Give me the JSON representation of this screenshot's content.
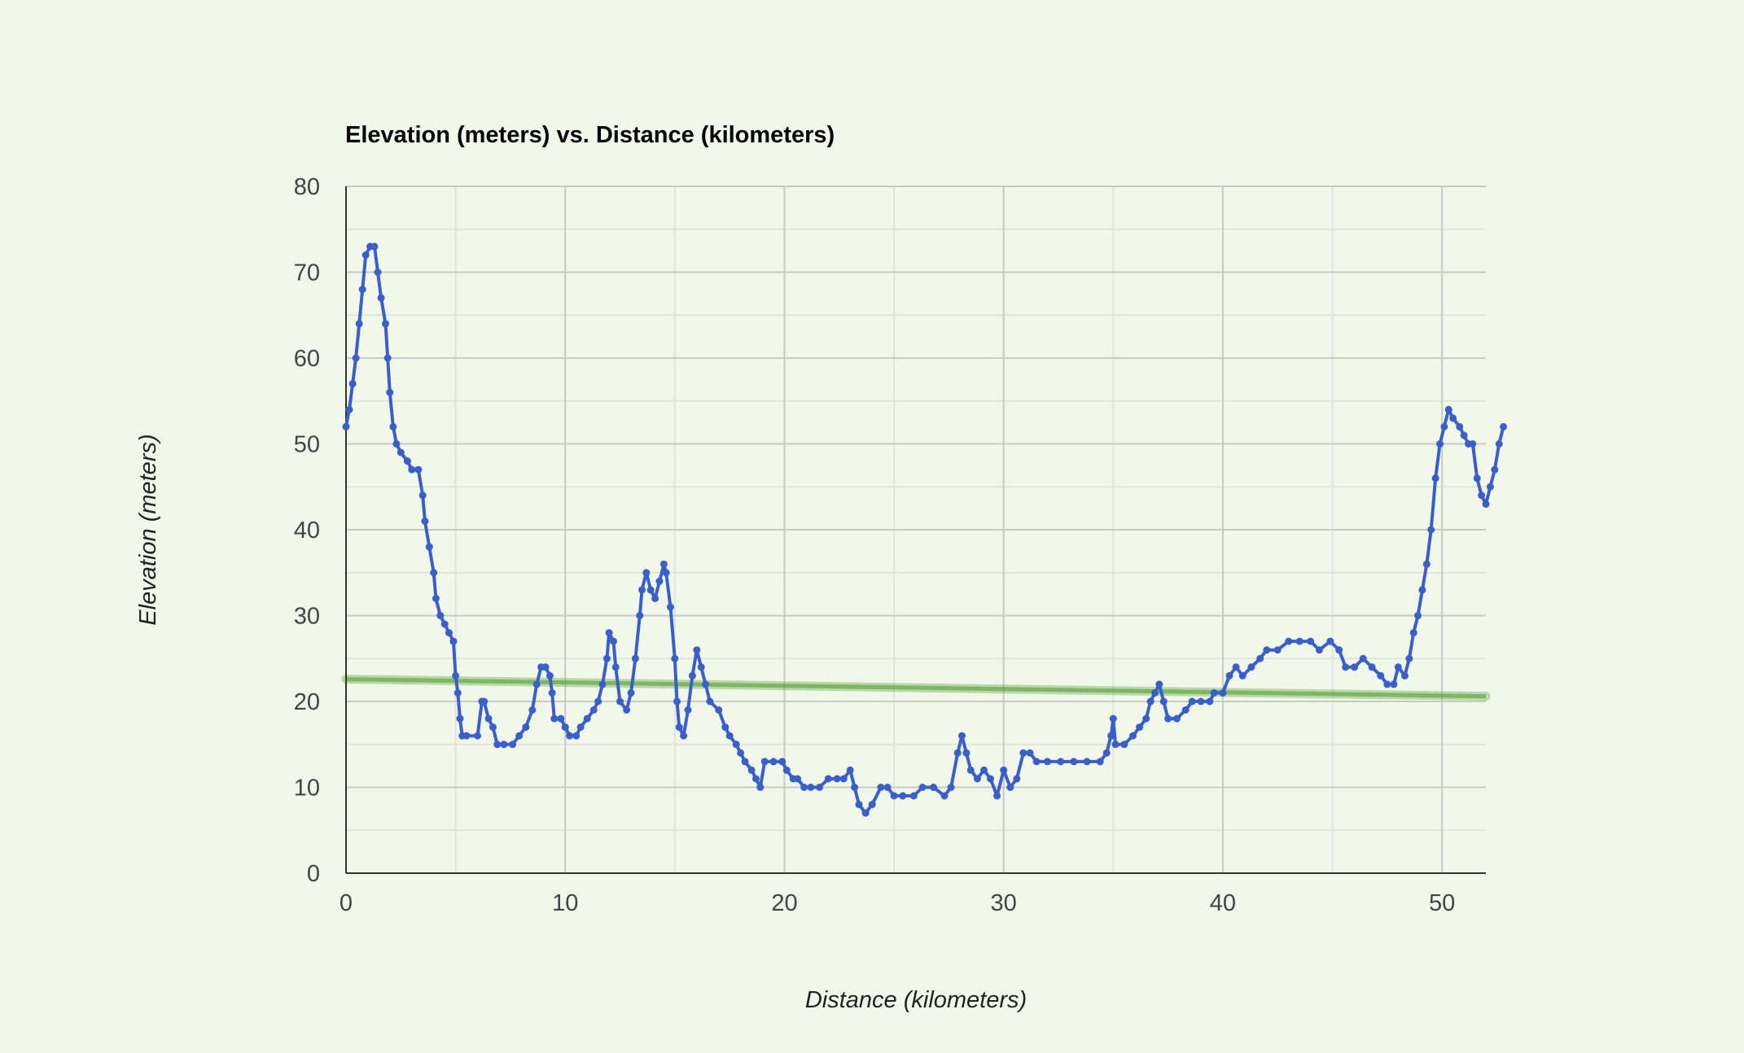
{
  "chart_data": {
    "type": "scatter",
    "title": "Elevation (meters) vs. Distance (kilometers)",
    "xlabel": "Distance (kilometers)",
    "ylabel": "Elevation (meters)",
    "xlim": [
      0,
      52
    ],
    "ylim": [
      0,
      80
    ],
    "x_ticks": [
      "0",
      "10",
      "20",
      "30",
      "40",
      "50"
    ],
    "y_ticks": [
      "0",
      "10",
      "20",
      "30",
      "40",
      "50",
      "60",
      "70",
      "80"
    ],
    "grid": true,
    "minor_grid": true,
    "legend": "none",
    "colors": {
      "background": "#f1f8ea",
      "series": "#3b5fc9",
      "trendline": "#4f9a2e",
      "major_grid": "#c6cbc4",
      "minor_grid": "#e0e6dc",
      "axis": "#333333"
    },
    "series": [
      {
        "points": [
          [
            0,
            52
          ],
          [
            0.15,
            54
          ],
          [
            0.3,
            57
          ],
          [
            0.45,
            60
          ],
          [
            0.6,
            64
          ],
          [
            0.75,
            68
          ],
          [
            0.9,
            72
          ],
          [
            1.1,
            73
          ],
          [
            1.3,
            73
          ],
          [
            1.45,
            70
          ],
          [
            1.6,
            67
          ],
          [
            1.8,
            64
          ],
          [
            1.9,
            60
          ],
          [
            2.0,
            56
          ],
          [
            2.15,
            52
          ],
          [
            2.3,
            50
          ],
          [
            2.5,
            49
          ],
          [
            2.8,
            48
          ],
          [
            3.0,
            47
          ],
          [
            3.3,
            47
          ],
          [
            3.5,
            44
          ],
          [
            3.6,
            41
          ],
          [
            3.8,
            38
          ],
          [
            4.0,
            35
          ],
          [
            4.1,
            32
          ],
          [
            4.3,
            30
          ],
          [
            4.5,
            29
          ],
          [
            4.7,
            28
          ],
          [
            4.9,
            27
          ],
          [
            5.0,
            23
          ],
          [
            5.1,
            21
          ],
          [
            5.2,
            18
          ],
          [
            5.3,
            16
          ],
          [
            5.5,
            16
          ],
          [
            6.0,
            16
          ],
          [
            6.2,
            20
          ],
          [
            6.3,
            20
          ],
          [
            6.5,
            18
          ],
          [
            6.7,
            17
          ],
          [
            6.9,
            15
          ],
          [
            7.2,
            15
          ],
          [
            7.6,
            15
          ],
          [
            7.9,
            16
          ],
          [
            8.2,
            17
          ],
          [
            8.5,
            19
          ],
          [
            8.7,
            22
          ],
          [
            8.9,
            24
          ],
          [
            9.1,
            24
          ],
          [
            9.3,
            23
          ],
          [
            9.4,
            21
          ],
          [
            9.5,
            18
          ],
          [
            9.8,
            18
          ],
          [
            10.0,
            17
          ],
          [
            10.2,
            16
          ],
          [
            10.5,
            16
          ],
          [
            10.7,
            17
          ],
          [
            11.0,
            18
          ],
          [
            11.3,
            19
          ],
          [
            11.5,
            20
          ],
          [
            11.7,
            22
          ],
          [
            11.9,
            25
          ],
          [
            12.0,
            28
          ],
          [
            12.2,
            27
          ],
          [
            12.3,
            24
          ],
          [
            12.5,
            20
          ],
          [
            12.8,
            19
          ],
          [
            13.0,
            21
          ],
          [
            13.2,
            25
          ],
          [
            13.4,
            30
          ],
          [
            13.5,
            33
          ],
          [
            13.7,
            35
          ],
          [
            13.9,
            33
          ],
          [
            14.1,
            32
          ],
          [
            14.3,
            34
          ],
          [
            14.5,
            36
          ],
          [
            14.6,
            35
          ],
          [
            14.8,
            31
          ],
          [
            15.0,
            25
          ],
          [
            15.1,
            20
          ],
          [
            15.2,
            17
          ],
          [
            15.4,
            16
          ],
          [
            15.6,
            19
          ],
          [
            15.8,
            23
          ],
          [
            16.0,
            26
          ],
          [
            16.2,
            24
          ],
          [
            16.4,
            22
          ],
          [
            16.6,
            20
          ],
          [
            17.0,
            19
          ],
          [
            17.3,
            17
          ],
          [
            17.5,
            16
          ],
          [
            17.8,
            15
          ],
          [
            18.0,
            14
          ],
          [
            18.2,
            13
          ],
          [
            18.5,
            12
          ],
          [
            18.7,
            11
          ],
          [
            18.9,
            10
          ],
          [
            19.1,
            13
          ],
          [
            19.5,
            13
          ],
          [
            19.9,
            13
          ],
          [
            20.1,
            12
          ],
          [
            20.4,
            11
          ],
          [
            20.6,
            11
          ],
          [
            20.9,
            10
          ],
          [
            21.2,
            10
          ],
          [
            21.6,
            10
          ],
          [
            22.0,
            11
          ],
          [
            22.4,
            11
          ],
          [
            22.7,
            11
          ],
          [
            23.0,
            12
          ],
          [
            23.2,
            10
          ],
          [
            23.4,
            8
          ],
          [
            23.7,
            7
          ],
          [
            24.0,
            8
          ],
          [
            24.4,
            10
          ],
          [
            24.7,
            10
          ],
          [
            25.0,
            9
          ],
          [
            25.4,
            9
          ],
          [
            25.9,
            9
          ],
          [
            26.3,
            10
          ],
          [
            26.8,
            10
          ],
          [
            27.3,
            9
          ],
          [
            27.6,
            10
          ],
          [
            27.9,
            14
          ],
          [
            28.1,
            16
          ],
          [
            28.3,
            14
          ],
          [
            28.5,
            12
          ],
          [
            28.8,
            11
          ],
          [
            29.1,
            12
          ],
          [
            29.4,
            11
          ],
          [
            29.7,
            9
          ],
          [
            30.0,
            12
          ],
          [
            30.3,
            10
          ],
          [
            30.6,
            11
          ],
          [
            30.9,
            14
          ],
          [
            31.2,
            14
          ],
          [
            31.5,
            13
          ],
          [
            32.0,
            13
          ],
          [
            32.6,
            13
          ],
          [
            33.2,
            13
          ],
          [
            33.8,
            13
          ],
          [
            34.4,
            13
          ],
          [
            34.7,
            14
          ],
          [
            34.9,
            16
          ],
          [
            35.0,
            18
          ],
          [
            35.1,
            15
          ],
          [
            35.5,
            15
          ],
          [
            35.9,
            16
          ],
          [
            36.2,
            17
          ],
          [
            36.5,
            18
          ],
          [
            36.7,
            20
          ],
          [
            36.9,
            21
          ],
          [
            37.1,
            22
          ],
          [
            37.3,
            20
          ],
          [
            37.5,
            18
          ],
          [
            37.9,
            18
          ],
          [
            38.3,
            19
          ],
          [
            38.6,
            20
          ],
          [
            39.0,
            20
          ],
          [
            39.4,
            20
          ],
          [
            39.6,
            21
          ],
          [
            40.0,
            21
          ],
          [
            40.3,
            23
          ],
          [
            40.6,
            24
          ],
          [
            40.9,
            23
          ],
          [
            41.3,
            24
          ],
          [
            41.7,
            25
          ],
          [
            42.0,
            26
          ],
          [
            42.5,
            26
          ],
          [
            43.0,
            27
          ],
          [
            43.5,
            27
          ],
          [
            44.0,
            27
          ],
          [
            44.4,
            26
          ],
          [
            44.9,
            27
          ],
          [
            45.3,
            26
          ],
          [
            45.6,
            24
          ],
          [
            46.0,
            24
          ],
          [
            46.4,
            25
          ],
          [
            46.8,
            24
          ],
          [
            47.2,
            23
          ],
          [
            47.5,
            22
          ],
          [
            47.8,
            22
          ],
          [
            48.0,
            24
          ],
          [
            48.3,
            23
          ],
          [
            48.5,
            25
          ],
          [
            48.7,
            28
          ],
          [
            48.9,
            30
          ],
          [
            49.1,
            33
          ],
          [
            49.3,
            36
          ],
          [
            49.5,
            40
          ],
          [
            49.7,
            46
          ],
          [
            49.9,
            50
          ],
          [
            50.1,
            52
          ],
          [
            50.3,
            54
          ],
          [
            50.5,
            53
          ],
          [
            50.8,
            52
          ],
          [
            51.0,
            51
          ],
          [
            51.2,
            50
          ],
          [
            51.4,
            50
          ],
          [
            51.6,
            46
          ],
          [
            51.8,
            44
          ],
          [
            52.0,
            43
          ],
          [
            52.2,
            45
          ],
          [
            52.4,
            47
          ],
          [
            52.6,
            50
          ],
          [
            52.8,
            52
          ]
        ]
      }
    ],
    "trendline": {
      "type": "linear",
      "points": [
        [
          0,
          22.6
        ],
        [
          52,
          20.6
        ]
      ]
    }
  }
}
